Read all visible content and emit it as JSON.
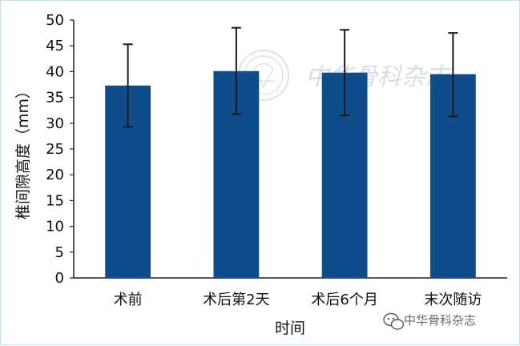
{
  "chart_data": {
    "type": "bar",
    "title": "",
    "xlabel": "时间",
    "ylabel": "椎间隙高度（mm）",
    "categories": [
      "术前",
      "术后第2天",
      "术后6个月",
      "末次随访"
    ],
    "values": [
      37.3,
      40.1,
      39.8,
      39.5
    ],
    "error_low": [
      29.3,
      31.8,
      31.5,
      31.3
    ],
    "error_high": [
      45.3,
      48.5,
      48.1,
      47.5
    ],
    "ylim": [
      0,
      50
    ],
    "yticks": [
      0,
      5,
      10,
      15,
      20,
      25,
      30,
      35,
      40,
      45,
      50
    ],
    "grid": false,
    "legend": "none",
    "bar_color": "#0f4c8c"
  },
  "watermark": {
    "text": "中华骨科杂志",
    "calligraphy": "中华骨科杂志"
  },
  "colors": {
    "axis": "#222222",
    "error_bar": "#1a1a1a",
    "frame_border": "#c9dde6"
  }
}
